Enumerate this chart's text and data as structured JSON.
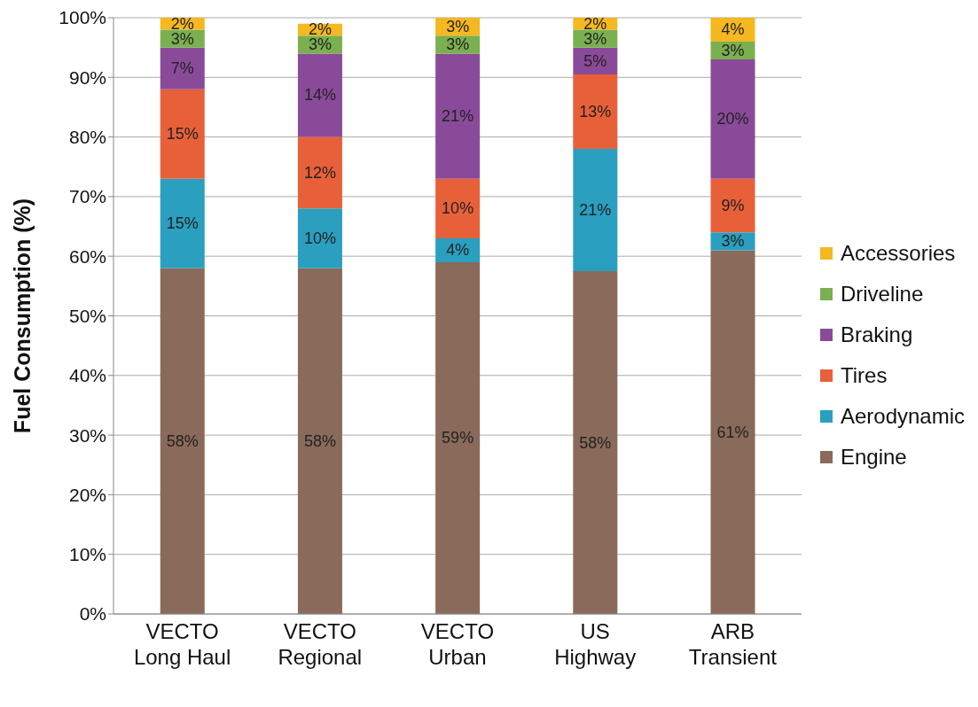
{
  "chart_data": {
    "type": "bar",
    "stacked": true,
    "ylabel": "Fuel  Consumption (%)",
    "categories": [
      "VECTO Long Haul",
      "VECTO Regional",
      "VECTO Urban",
      "US Highway",
      "ARB Transient"
    ],
    "series": [
      {
        "name": "Engine",
        "color": "#8a6a5a",
        "values": [
          58,
          58,
          59,
          57.5,
          61
        ],
        "value_labels": [
          "58%",
          "58%",
          "59%",
          "58%",
          "61%"
        ]
      },
      {
        "name": "Aerodynamic",
        "color": "#2a9fbf",
        "values": [
          15,
          10,
          4,
          20.5,
          3
        ],
        "value_labels": [
          "15%",
          "10%",
          "4%",
          "21%",
          "3%"
        ]
      },
      {
        "name": "Tires",
        "color": "#e8603a",
        "values": [
          15,
          12,
          10,
          12.5,
          9
        ],
        "value_labels": [
          "15%",
          "12%",
          "10%",
          "13%",
          "9%"
        ]
      },
      {
        "name": "Braking",
        "color": "#8a4a9a",
        "values": [
          7,
          14,
          21,
          4.5,
          20
        ],
        "value_labels": [
          "7%",
          "14%",
          "21%",
          "5%",
          "20%"
        ]
      },
      {
        "name": "Driveline",
        "color": "#7ab050",
        "values": [
          3,
          3,
          3,
          3,
          3
        ],
        "value_labels": [
          "3%",
          "3%",
          "3%",
          "3%",
          "3%"
        ]
      },
      {
        "name": "Accessories",
        "color": "#f5b820",
        "values": [
          2,
          2,
          3,
          2,
          4
        ],
        "value_labels": [
          "2%",
          "2%",
          "3%",
          "2%",
          "4%"
        ]
      }
    ],
    "ylim": [
      0,
      100
    ],
    "yticks": [
      {
        "value": 0,
        "label": "0%"
      },
      {
        "value": 10,
        "label": "10%"
      },
      {
        "value": 20,
        "label": "20%"
      },
      {
        "value": 30,
        "label": "30%"
      },
      {
        "value": 40,
        "label": "40%"
      },
      {
        "value": 50,
        "label": "50%"
      },
      {
        "value": 60,
        "label": "60%"
      },
      {
        "value": 70,
        "label": "70%"
      },
      {
        "value": 80,
        "label": "80%"
      },
      {
        "value": 90,
        "label": "90%"
      },
      {
        "value": 100,
        "label": "100%"
      }
    ],
    "grid": "y",
    "legend": "right",
    "marker": "square"
  }
}
